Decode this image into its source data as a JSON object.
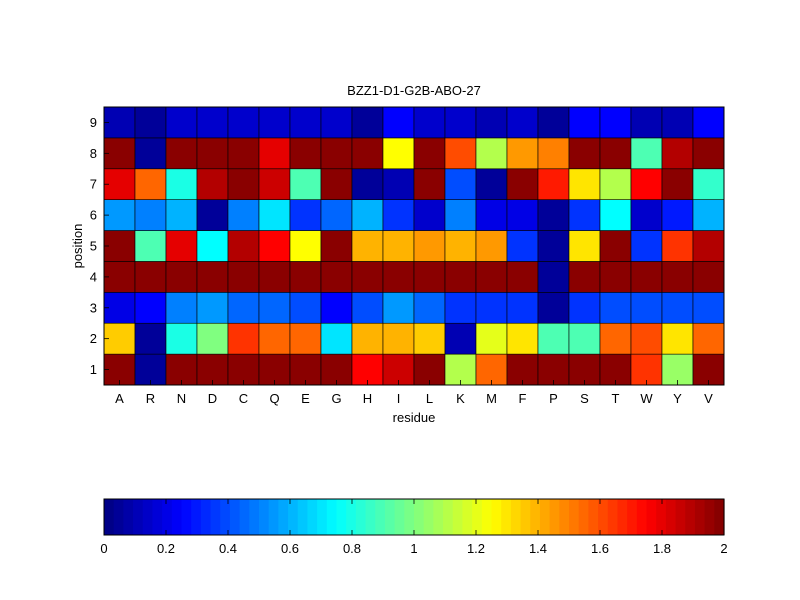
{
  "chart_data": {
    "type": "heatmap",
    "title": "BZZ1-D1-G2B-ABO-27",
    "xlabel": "residue",
    "ylabel": "position",
    "x_categories": [
      "A",
      "R",
      "N",
      "D",
      "C",
      "Q",
      "E",
      "G",
      "H",
      "I",
      "L",
      "K",
      "M",
      "F",
      "P",
      "S",
      "T",
      "W",
      "Y",
      "V"
    ],
    "y_categories": [
      "1",
      "2",
      "3",
      "4",
      "5",
      "6",
      "7",
      "8",
      "9"
    ],
    "values": [
      [
        1.98,
        0.05,
        1.98,
        1.98,
        1.98,
        1.98,
        1.98,
        1.98,
        1.75,
        1.85,
        1.98,
        1.1,
        1.55,
        1.98,
        1.98,
        1.98,
        1.98,
        1.65,
        1.05,
        1.98
      ],
      [
        1.35,
        0.05,
        0.8,
        1.0,
        1.65,
        1.55,
        1.55,
        0.7,
        1.4,
        1.4,
        1.35,
        0.1,
        1.2,
        1.3,
        0.9,
        0.9,
        1.55,
        1.6,
        1.3,
        1.55
      ],
      [
        0.2,
        0.25,
        0.5,
        0.55,
        0.45,
        0.45,
        0.4,
        0.25,
        0.4,
        0.55,
        0.45,
        0.35,
        0.35,
        0.35,
        0.05,
        0.35,
        0.4,
        0.4,
        0.4,
        0.4
      ],
      [
        1.98,
        1.98,
        1.98,
        1.98,
        1.98,
        1.98,
        1.98,
        1.98,
        1.98,
        1.98,
        1.98,
        1.98,
        1.98,
        1.98,
        0.05,
        1.98,
        1.98,
        1.98,
        1.98,
        1.98
      ],
      [
        1.98,
        0.9,
        1.8,
        0.75,
        1.9,
        1.75,
        1.25,
        1.98,
        1.4,
        1.4,
        1.45,
        1.4,
        1.45,
        0.35,
        0.05,
        1.3,
        1.98,
        0.35,
        1.65,
        1.9
      ],
      [
        0.55,
        0.5,
        0.6,
        0.05,
        0.5,
        0.7,
        0.35,
        0.45,
        0.6,
        0.35,
        0.15,
        0.5,
        0.2,
        0.2,
        0.05,
        0.35,
        0.75,
        0.15,
        0.3,
        0.6
      ],
      [
        1.8,
        1.55,
        0.8,
        1.9,
        1.98,
        1.85,
        0.9,
        1.98,
        0.05,
        0.1,
        1.98,
        0.4,
        0.05,
        1.98,
        1.7,
        1.3,
        1.1,
        1.75,
        1.98,
        0.85
      ],
      [
        1.98,
        0.05,
        1.98,
        1.98,
        1.98,
        1.8,
        1.98,
        1.98,
        1.98,
        1.25,
        1.98,
        1.6,
        1.1,
        1.45,
        1.5,
        1.98,
        1.98,
        0.9,
        1.9,
        1.98
      ],
      [
        0.1,
        0.05,
        0.15,
        0.15,
        0.15,
        0.15,
        0.15,
        0.15,
        0.05,
        0.25,
        0.15,
        0.15,
        0.1,
        0.15,
        0.05,
        0.25,
        0.25,
        0.1,
        0.1,
        0.25
      ]
    ],
    "colormap": "jet",
    "clim": [
      0,
      2
    ],
    "colorbar": {
      "orientation": "horizontal",
      "placement": "bottom",
      "ticks": [
        0,
        0.2,
        0.4,
        0.6,
        0.8,
        1,
        1.2,
        1.4,
        1.6,
        1.8,
        2
      ],
      "tick_labels": [
        "0",
        "0.2",
        "0.4",
        "0.6",
        "0.8",
        "1",
        "1.2",
        "1.4",
        "1.6",
        "1.8",
        "2"
      ]
    },
    "grid": false
  }
}
